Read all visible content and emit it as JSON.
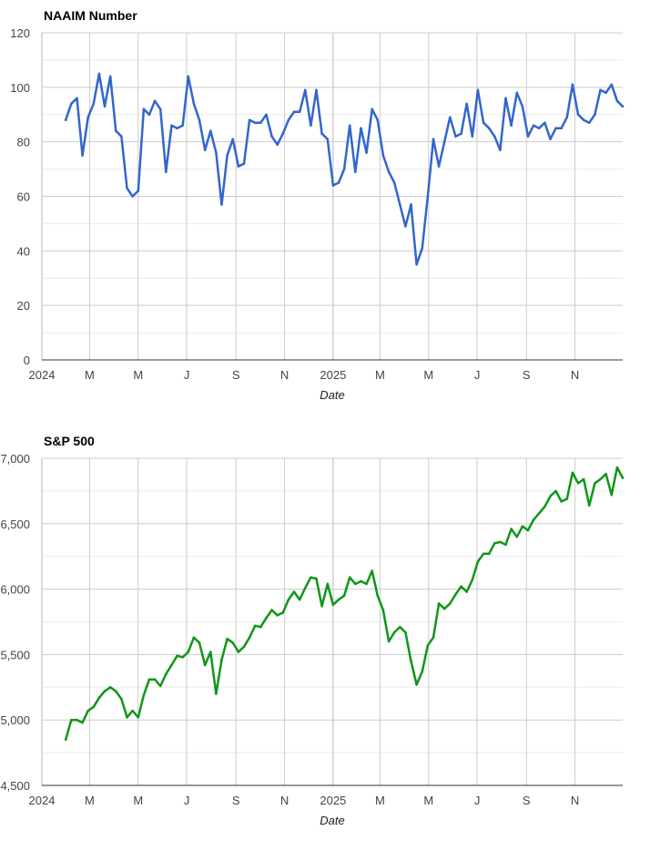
{
  "chart_data": [
    {
      "type": "line",
      "title": "NAAIM Number",
      "xlabel": "Date",
      "ylabel": "",
      "ylim": [
        0,
        120
      ],
      "yticks": [
        0,
        20,
        40,
        60,
        80,
        100,
        120
      ],
      "y_tick_labels": [
        "0",
        "20",
        "40",
        "60",
        "80",
        "100",
        "120"
      ],
      "xlim": [
        "2024-01-01",
        "2025-12-31"
      ],
      "x_ticks": [
        {
          "x": "2024-01-01",
          "label": "2024"
        },
        {
          "x": "2024-03-01",
          "label": "M"
        },
        {
          "x": "2024-05-01",
          "label": "M"
        },
        {
          "x": "2024-07-01",
          "label": "J"
        },
        {
          "x": "2024-09-01",
          "label": "S"
        },
        {
          "x": "2024-11-01",
          "label": "N"
        },
        {
          "x": "2025-01-01",
          "label": "2025"
        },
        {
          "x": "2025-03-01",
          "label": "M"
        },
        {
          "x": "2025-05-01",
          "label": "M"
        },
        {
          "x": "2025-07-01",
          "label": "J"
        },
        {
          "x": "2025-09-01",
          "label": "S"
        },
        {
          "x": "2025-11-01",
          "label": "N"
        }
      ],
      "grid": true,
      "color": "#3366cc",
      "series": [
        {
          "x": [
            "2024-01-31",
            "2024-02-07",
            "2024-02-14",
            "2024-02-21",
            "2024-02-28",
            "2024-03-06",
            "2024-03-13",
            "2024-03-20",
            "2024-03-27",
            "2024-04-03",
            "2024-04-10",
            "2024-04-17",
            "2024-04-24",
            "2024-05-01",
            "2024-05-08",
            "2024-05-15",
            "2024-05-22",
            "2024-05-29",
            "2024-06-05",
            "2024-06-12",
            "2024-06-19",
            "2024-06-26",
            "2024-07-03",
            "2024-07-10",
            "2024-07-17",
            "2024-07-24",
            "2024-07-31",
            "2024-08-07",
            "2024-08-14",
            "2024-08-21",
            "2024-08-28",
            "2024-09-04",
            "2024-09-11",
            "2024-09-18",
            "2024-09-25",
            "2024-10-02",
            "2024-10-09",
            "2024-10-16",
            "2024-10-23",
            "2024-10-30",
            "2024-11-06",
            "2024-11-13",
            "2024-11-20",
            "2024-11-27",
            "2024-12-04",
            "2024-12-11",
            "2024-12-18",
            "2024-12-25",
            "2025-01-01",
            "2025-01-08",
            "2025-01-15",
            "2025-01-22",
            "2025-01-29",
            "2025-02-05",
            "2025-02-12",
            "2025-02-19",
            "2025-02-26",
            "2025-03-05",
            "2025-03-12",
            "2025-03-19",
            "2025-03-26",
            "2025-04-02",
            "2025-04-09",
            "2025-04-16",
            "2025-04-23",
            "2025-04-30",
            "2025-05-07",
            "2025-05-14",
            "2025-05-21",
            "2025-05-28",
            "2025-06-04",
            "2025-06-11",
            "2025-06-18",
            "2025-06-25",
            "2025-07-02",
            "2025-07-09",
            "2025-07-16",
            "2025-07-23",
            "2025-07-30",
            "2025-08-06",
            "2025-08-13",
            "2025-08-20",
            "2025-08-27",
            "2025-09-03",
            "2025-09-10",
            "2025-09-17",
            "2025-09-24",
            "2025-10-01",
            "2025-10-08",
            "2025-10-15",
            "2025-10-22",
            "2025-10-29",
            "2025-11-05",
            "2025-11-12",
            "2025-11-19",
            "2025-11-26",
            "2025-12-03",
            "2025-12-10",
            "2025-12-17",
            "2025-12-24",
            "2025-12-31"
          ],
          "y": [
            88,
            94,
            96,
            75,
            89,
            94,
            105,
            93,
            104,
            84,
            82,
            63,
            60,
            62,
            92,
            90,
            95,
            92,
            69,
            86,
            85,
            86,
            104,
            94,
            88,
            77,
            84,
            76,
            57,
            75,
            81,
            71,
            72,
            88,
            87,
            87,
            90,
            82,
            79,
            83,
            88,
            91,
            91,
            99,
            86,
            99,
            83,
            81,
            64,
            65,
            70,
            86,
            69,
            85,
            76,
            92,
            88,
            75,
            69,
            65,
            57,
            49,
            57,
            35,
            41,
            60,
            81,
            71,
            80,
            89,
            82,
            83,
            94,
            82,
            99,
            87,
            85,
            82,
            77,
            96,
            86,
            98,
            93,
            82,
            86,
            85,
            87,
            81,
            85,
            85,
            89,
            101,
            90,
            88,
            87,
            90,
            99,
            98,
            101,
            95,
            93
          ]
        }
      ]
    },
    {
      "type": "line",
      "title": "S&P 500",
      "xlabel": "Date",
      "ylabel": "",
      "ylim": [
        4500,
        7000
      ],
      "yticks": [
        4500,
        5000,
        5500,
        6000,
        6500,
        7000
      ],
      "y_tick_labels": [
        "4,500",
        "5,000",
        "5,500",
        "6,000",
        "6,500",
        "7,000"
      ],
      "xlim": [
        "2024-01-01",
        "2025-12-31"
      ],
      "x_ticks": [
        {
          "x": "2024-01-01",
          "label": "2024"
        },
        {
          "x": "2024-03-01",
          "label": "M"
        },
        {
          "x": "2024-05-01",
          "label": "M"
        },
        {
          "x": "2024-07-01",
          "label": "J"
        },
        {
          "x": "2024-09-01",
          "label": "S"
        },
        {
          "x": "2024-11-01",
          "label": "N"
        },
        {
          "x": "2025-01-01",
          "label": "2025"
        },
        {
          "x": "2025-03-01",
          "label": "M"
        },
        {
          "x": "2025-05-01",
          "label": "M"
        },
        {
          "x": "2025-07-01",
          "label": "J"
        },
        {
          "x": "2025-09-01",
          "label": "S"
        },
        {
          "x": "2025-11-01",
          "label": "N"
        }
      ],
      "grid": true,
      "color": "#109618",
      "series": [
        {
          "x": [
            "2024-01-31",
            "2024-02-07",
            "2024-02-14",
            "2024-02-21",
            "2024-02-28",
            "2024-03-06",
            "2024-03-13",
            "2024-03-20",
            "2024-03-27",
            "2024-04-03",
            "2024-04-10",
            "2024-04-17",
            "2024-04-24",
            "2024-05-01",
            "2024-05-08",
            "2024-05-15",
            "2024-05-22",
            "2024-05-29",
            "2024-06-05",
            "2024-06-12",
            "2024-06-19",
            "2024-06-26",
            "2024-07-03",
            "2024-07-10",
            "2024-07-17",
            "2024-07-24",
            "2024-07-31",
            "2024-08-07",
            "2024-08-14",
            "2024-08-21",
            "2024-08-28",
            "2024-09-04",
            "2024-09-11",
            "2024-09-18",
            "2024-09-25",
            "2024-10-02",
            "2024-10-09",
            "2024-10-16",
            "2024-10-23",
            "2024-10-30",
            "2024-11-06",
            "2024-11-13",
            "2024-11-20",
            "2024-11-27",
            "2024-12-04",
            "2024-12-11",
            "2024-12-18",
            "2024-12-25",
            "2025-01-01",
            "2025-01-08",
            "2025-01-15",
            "2025-01-22",
            "2025-01-29",
            "2025-02-05",
            "2025-02-12",
            "2025-02-19",
            "2025-02-26",
            "2025-03-05",
            "2025-03-12",
            "2025-03-19",
            "2025-03-26",
            "2025-04-02",
            "2025-04-09",
            "2025-04-16",
            "2025-04-23",
            "2025-04-30",
            "2025-05-07",
            "2025-05-14",
            "2025-05-21",
            "2025-05-28",
            "2025-06-04",
            "2025-06-11",
            "2025-06-18",
            "2025-06-25",
            "2025-07-02",
            "2025-07-09",
            "2025-07-16",
            "2025-07-23",
            "2025-07-30",
            "2025-08-06",
            "2025-08-13",
            "2025-08-20",
            "2025-08-27",
            "2025-09-03",
            "2025-09-10",
            "2025-09-17",
            "2025-09-24",
            "2025-10-01",
            "2025-10-08",
            "2025-10-15",
            "2025-10-22",
            "2025-10-29",
            "2025-11-05",
            "2025-11-12",
            "2025-11-19",
            "2025-11-26",
            "2025-12-03",
            "2025-12-10",
            "2025-12-17",
            "2025-12-24",
            "2025-12-31"
          ],
          "y": [
            4850,
            5000,
            5000,
            4980,
            5070,
            5100,
            5170,
            5220,
            5250,
            5220,
            5160,
            5020,
            5070,
            5020,
            5190,
            5310,
            5310,
            5260,
            5350,
            5420,
            5490,
            5480,
            5520,
            5630,
            5590,
            5420,
            5520,
            5200,
            5460,
            5620,
            5590,
            5520,
            5560,
            5630,
            5720,
            5710,
            5780,
            5840,
            5800,
            5820,
            5920,
            5980,
            5920,
            6010,
            6090,
            6080,
            5870,
            6040,
            5880,
            5920,
            5950,
            6090,
            6040,
            6060,
            6040,
            6140,
            5950,
            5840,
            5600,
            5670,
            5710,
            5670,
            5450,
            5270,
            5370,
            5570,
            5630,
            5890,
            5850,
            5890,
            5960,
            6020,
            5980,
            6070,
            6210,
            6270,
            6270,
            6350,
            6360,
            6340,
            6460,
            6400,
            6480,
            6450,
            6530,
            6580,
            6630,
            6710,
            6750,
            6670,
            6690,
            6890,
            6810,
            6840,
            6640,
            6810,
            6840,
            6880,
            6720,
            6930,
            6850
          ]
        }
      ]
    }
  ]
}
